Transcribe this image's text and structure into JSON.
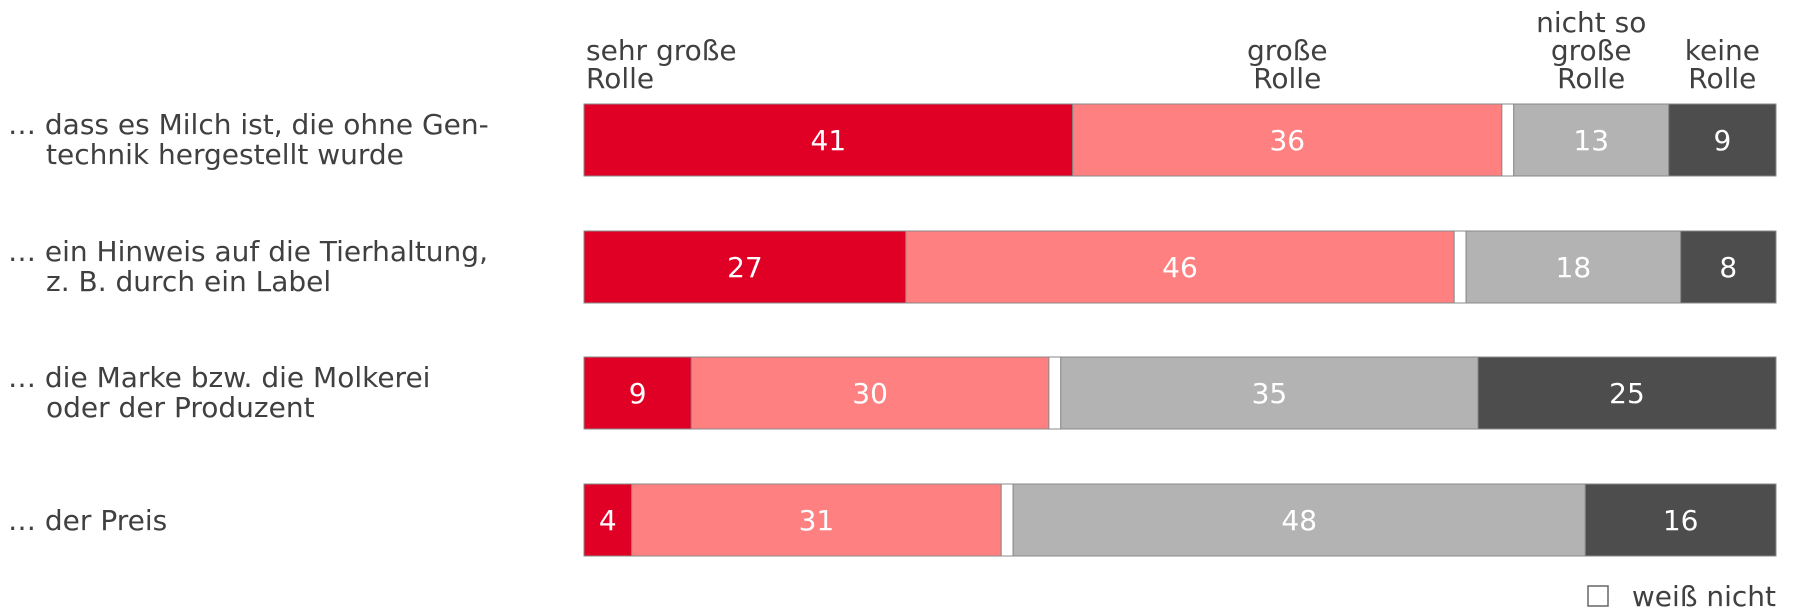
{
  "chart_data": {
    "type": "stacked_barh",
    "categories": [
      "… dass es Milch ist, die ohne Gen-\ntechnik hergestellt wurde",
      "… ein Hinweis auf die Tierhaltung,\nz. B. durch ein Label",
      "… die Marke bzw. die Molkerei\noder der Produzent",
      "… der Preis"
    ],
    "series": [
      {
        "name": "sehr große\nRolle",
        "color": "#e00025",
        "label_color": "#ffffff",
        "values": [
          41,
          27,
          9,
          4
        ]
      },
      {
        "name": "große\nRolle",
        "color": "#ff8080",
        "label_color": "#ffffff",
        "values": [
          36,
          46,
          30,
          31
        ]
      },
      {
        "name": "weiß nicht",
        "color": "#ffffff",
        "values": [
          1,
          1,
          1,
          1
        ],
        "legend": "box"
      },
      {
        "name": "nicht so\ngroße\nRolle",
        "color": "#b3b3b3",
        "label_color": "#ffffff",
        "values": [
          13,
          18,
          35,
          48
        ]
      },
      {
        "name": "keine\nRolle",
        "color": "#4d4d4d",
        "label_color": "#ffffff",
        "values": [
          9,
          8,
          25,
          16
        ]
      }
    ],
    "xlim": [
      0,
      100
    ]
  }
}
